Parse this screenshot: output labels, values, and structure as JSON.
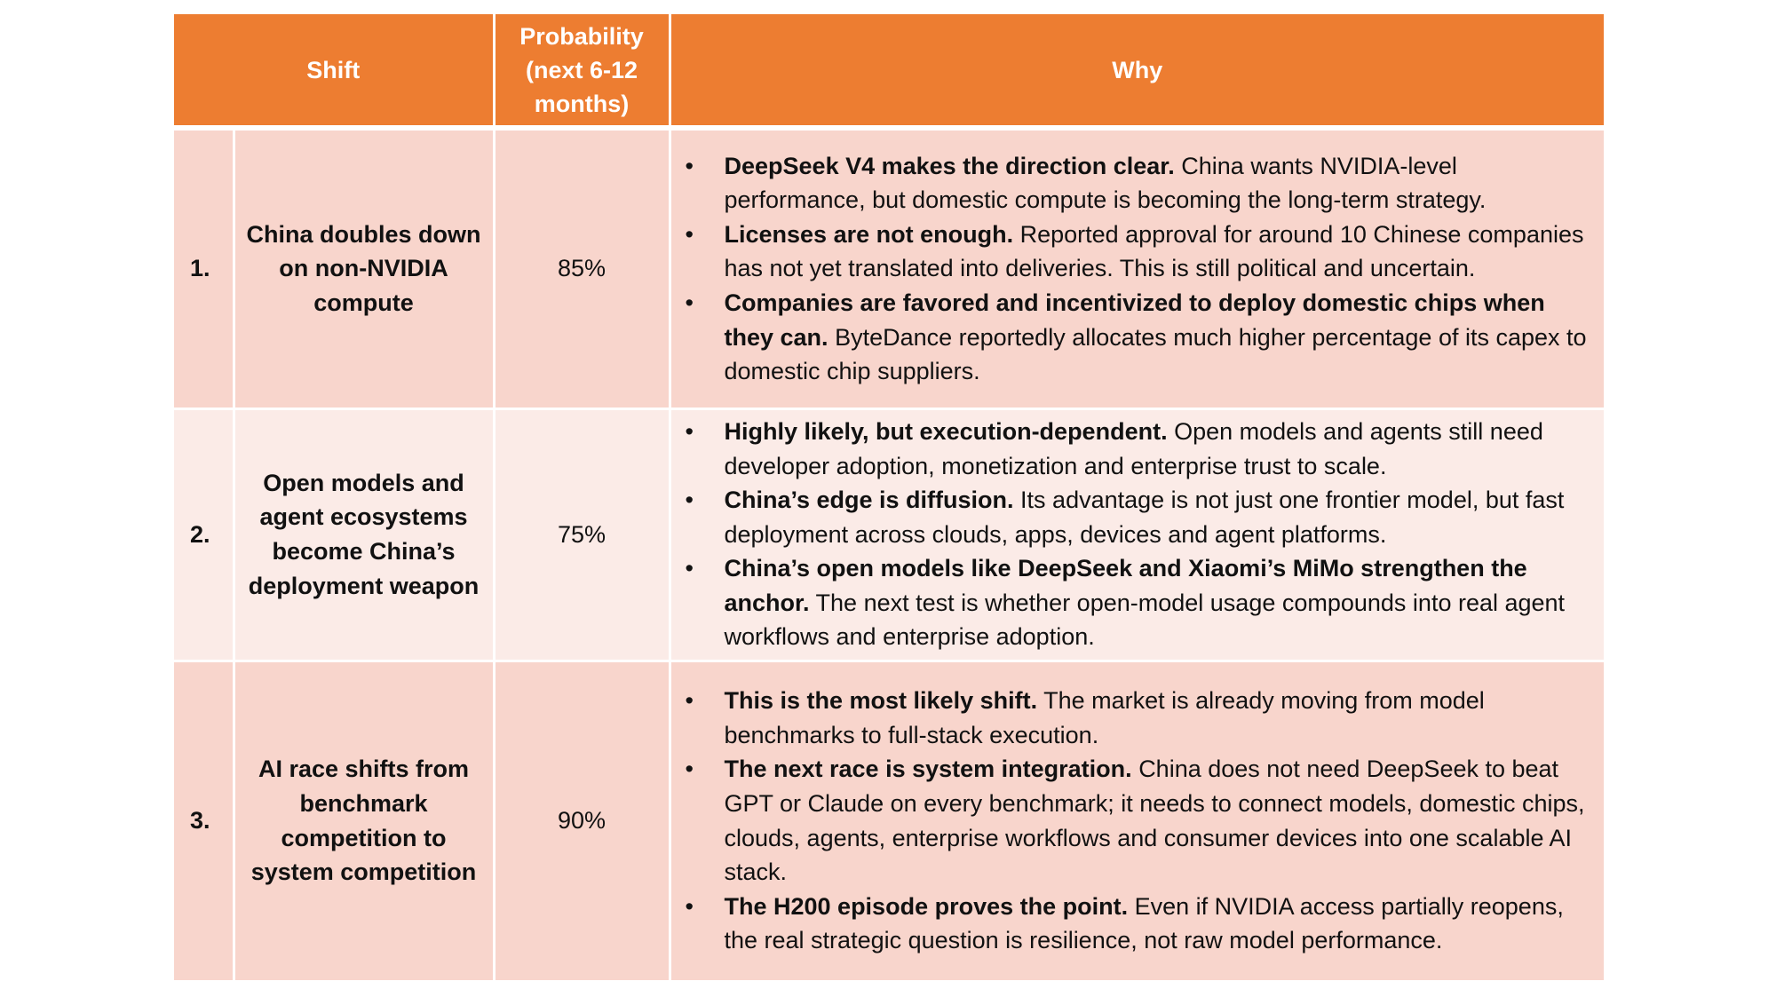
{
  "headers": {
    "shift": "Shift",
    "probability": "Probability (next 6-12 months)",
    "why": "Why"
  },
  "rows": [
    {
      "number": "1.",
      "shift": "China doubles down on non-NVIDIA compute",
      "probability": "85%",
      "bullets": [
        {
          "lead": "DeepSeek V4 makes the direction clear.",
          "text": "China wants NVIDIA-level performance, but domestic compute is becoming the long-term strategy."
        },
        {
          "lead": "Licenses are not enough.",
          "text": "Reported approval for around 10 Chinese companies has not yet translated into deliveries. This is still political and uncertain."
        },
        {
          "lead": "Companies are favored and incentivized to deploy domestic chips when they can.",
          "text": "ByteDance reportedly allocates much higher percentage of its capex to domestic chip suppliers."
        }
      ]
    },
    {
      "number": "2.",
      "shift": "Open models and agent ecosystems become China’s deployment weapon",
      "probability": "75%",
      "bullets": [
        {
          "lead": "Highly likely, but execution-dependent.",
          "text": "Open models and agents still need developer adoption, monetization and enterprise trust to scale."
        },
        {
          "lead": "China’s edge is diffusion.",
          "text": "Its advantage is not just one frontier model, but fast deployment across clouds, apps, devices and agent platforms."
        },
        {
          "lead": "China’s open models like DeepSeek and Xiaomi’s MiMo strengthen the anchor.",
          "text": "The next test is whether open-model usage compounds into real agent workflows and enterprise adoption."
        }
      ]
    },
    {
      "number": "3.",
      "shift": "AI race shifts from benchmark competition to system competition",
      "probability": "90%",
      "bullets": [
        {
          "lead": "This is the most likely shift.",
          "text": "The market is already moving from model benchmarks to full-stack execution."
        },
        {
          "lead": "The next race is system integration.",
          "text": "China does not need DeepSeek to beat GPT or Claude on every benchmark; it needs to connect models, domestic chips, clouds, agents, enterprise workflows and consumer devices into one scalable AI stack."
        },
        {
          "lead": "The H200 episode proves the point.",
          "text": "Even if NVIDIA access partially reopens, the real strategic question is resilience, not raw model performance."
        }
      ]
    }
  ]
}
